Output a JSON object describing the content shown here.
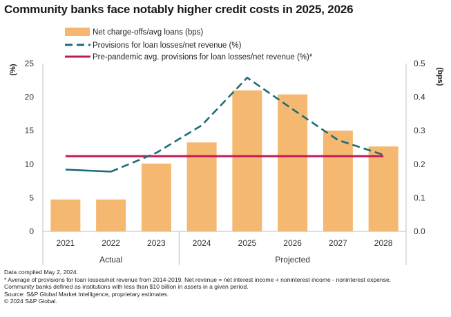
{
  "title": "Community banks face notably higher credit costs in 2025, 2026",
  "chart_data": {
    "type": "bar",
    "categories": [
      "2021",
      "2022",
      "2023",
      "2024",
      "2025",
      "2026",
      "2027",
      "2028"
    ],
    "period_groups": [
      {
        "label": "Actual",
        "categories": [
          "2021",
          "2022",
          "2023"
        ]
      },
      {
        "label": "Projected",
        "categories": [
          "2024",
          "2025",
          "2026",
          "2027",
          "2028"
        ]
      }
    ],
    "left_axis": {
      "label": "(%)",
      "ylim": [
        0,
        25
      ],
      "ticks": [
        0,
        5,
        10,
        15,
        20,
        25
      ]
    },
    "right_axis": {
      "label": "(bps)",
      "ylim": [
        0.0,
        0.5
      ],
      "ticks": [
        "0.0",
        "0.1",
        "0.2",
        "0.3",
        "0.4",
        "0.5"
      ]
    },
    "series": [
      {
        "name": "Net charge-offs/avg loans (bps)",
        "type": "bar",
        "axis": "right",
        "color": "#F5B871",
        "values": [
          0.095,
          0.095,
          0.202,
          0.265,
          0.42,
          0.408,
          0.3,
          0.253
        ]
      },
      {
        "name": "Provisions for loan losses/net revenue (%)",
        "type": "line",
        "axis": "left",
        "color": "#1C6B77",
        "values": [
          9.2,
          8.9,
          11.7,
          15.8,
          22.9,
          18.2,
          13.6,
          11.4
        ],
        "style_by_category": [
          "solid",
          "solid",
          "dashed",
          "dashed",
          "dashed",
          "dashed",
          "dashed",
          "dashed"
        ]
      },
      {
        "name": "Pre-pandemic avg. provisions for loan losses/net revenue (%)*",
        "type": "line",
        "axis": "left",
        "color": "#C2185B",
        "values": [
          11.2,
          11.2,
          11.2,
          11.2,
          11.2,
          11.2,
          11.2,
          11.2
        ]
      }
    ],
    "legend_position": "top-left",
    "grid": false
  },
  "footnotes": [
    "Data compiled May 2, 2024.",
    "* Average of provisions for loan losses/net revenue from 2014-2019. Net revenue = net interest income + noninterest income - noninterest expense.",
    "Community banks defined as institutions with less than $10 billion in assets in a given period.",
    "Source: S&P Global Market Intelligence, proprietary estimates.",
    "© 2024 S&P Global."
  ]
}
